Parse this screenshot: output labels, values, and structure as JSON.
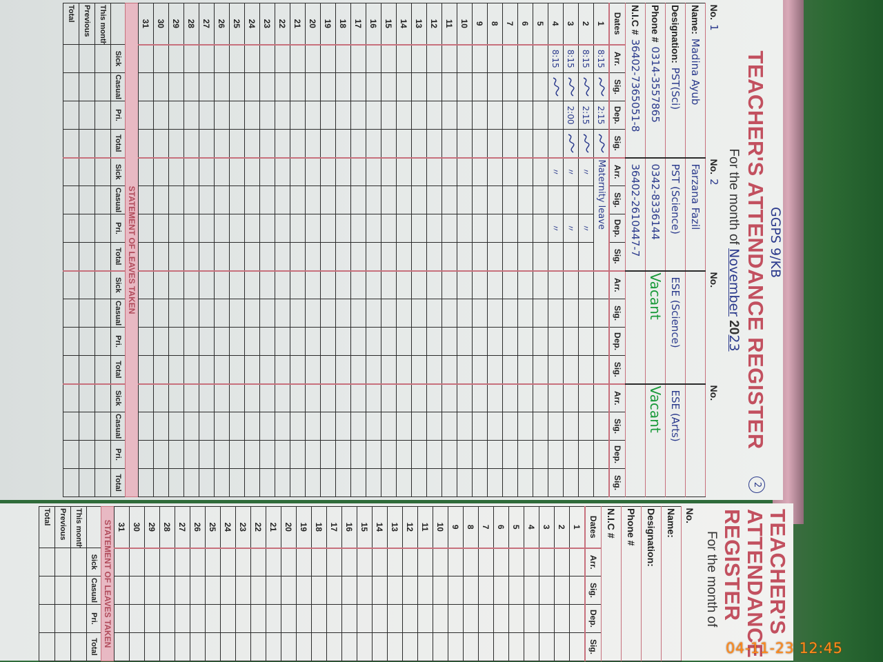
{
  "handwritten_header": "GGPS 9/KB",
  "page_number": "2",
  "title": "TEACHER'S ATTENDANCE REGISTER",
  "month_label": "For the month of",
  "month": "November",
  "year_prefix": "20",
  "year": "23",
  "labels": {
    "no": "No.",
    "name": "Name:",
    "designation": "Designation:",
    "phone": "Phone #",
    "nic": "N.I.C #",
    "dates": "Dates",
    "cols": [
      "Arr.",
      "Sig.",
      "Dep.",
      "Sig."
    ],
    "leaves_title": "STATEMENT OF LEAVES TAKEN",
    "leave_cols": [
      "Sick",
      "Casual",
      "Pri.",
      "Total"
    ],
    "leave_rows": [
      "This month",
      "Previous",
      "Total"
    ]
  },
  "teachers": [
    {
      "no": "1",
      "name": "Madina Ayub",
      "designation": "PST(Sci)",
      "phone": "0314-3557865",
      "nic": "36402-7365051-8",
      "status": "",
      "days": [
        {
          "date": 1,
          "arr": "8:15",
          "arr_signed": true,
          "dep": "2:15",
          "dep_signed": true
        },
        {
          "date": 2,
          "arr": "8:15",
          "arr_signed": true,
          "dep": "2:15",
          "dep_signed": true
        },
        {
          "date": 3,
          "arr": "8:15",
          "arr_signed": true,
          "dep": "2:00",
          "dep_signed": true
        },
        {
          "date": 4,
          "arr": "8:15",
          "arr_signed": true,
          "dep": "",
          "dep_signed": false
        }
      ]
    },
    {
      "no": "2",
      "name": "Farzana Fazil",
      "designation": "PST (Science)",
      "phone": "0342-8336144",
      "nic": "36402-2610447-7",
      "status": "",
      "days": [
        {
          "date": 1,
          "note": "Maternity leave"
        },
        {
          "date": 2,
          "arr": "〃",
          "dep": "〃"
        },
        {
          "date": 3,
          "arr": "〃",
          "dep": "〃"
        },
        {
          "date": 4,
          "arr": "〃",
          "dep": "〃"
        }
      ]
    },
    {
      "no": "",
      "name": "",
      "designation": "ESE (Science)",
      "phone": "",
      "nic": "",
      "status": "Vacant",
      "days": []
    },
    {
      "no": "",
      "name": "",
      "designation": "ESE (Arts)",
      "phone": "",
      "nic": "",
      "status": "Vacant",
      "days": []
    }
  ],
  "next_page": {
    "title": "TEACHER'S ATTENDANCE REGISTER",
    "month_label": "For the month of"
  },
  "timestamp": "04-11-23  12:45"
}
